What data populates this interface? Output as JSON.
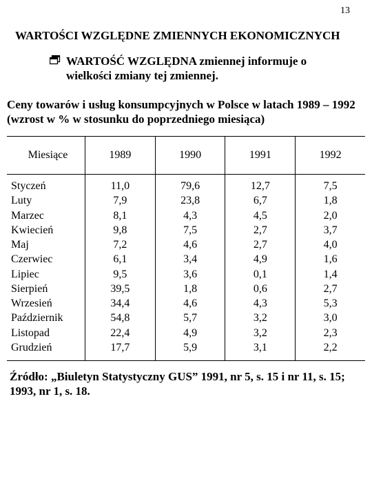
{
  "page": {
    "number": "13"
  },
  "heading1": "WARTOŚCI WZGLĘDNE ZMIENNYCH EKONOMICZNYCH",
  "definition": {
    "line1": "WARTOŚĆ WZGLĘDNA zmiennej informuje   o",
    "line2": "wielkości zmiany tej  zmiennej."
  },
  "table_title": {
    "top": "Ceny towarów i usług konsumpcyjnych w Polsce w latach 1989 – 1992",
    "sub": "(wzrost w % w stosunku do poprzedniego miesiąca)"
  },
  "table": {
    "columns": [
      "Miesiące",
      "1989",
      "1990",
      "1991",
      "1992"
    ],
    "col_widths_pct": [
      21,
      19.75,
      19.75,
      19.75,
      19.75
    ],
    "border_color": "#000000",
    "background_color": "#ffffff",
    "header_font_size": 16,
    "body_font_size": 16,
    "rows": [
      [
        "Styczeń",
        "11,0",
        "79,6",
        "12,7",
        "7,5"
      ],
      [
        "Luty",
        "7,9",
        "23,8",
        "6,7",
        "1,8"
      ],
      [
        "Marzec",
        "8,1",
        "4,3",
        "4,5",
        "2,0"
      ],
      [
        "Kwiecień",
        "9,8",
        "7,5",
        "2,7",
        "3,7"
      ],
      [
        "Maj",
        "7,2",
        "4,6",
        "2,7",
        "4,0"
      ],
      [
        "Czerwiec",
        "6,1",
        "3,4",
        "4,9",
        "1,6"
      ],
      [
        "Lipiec",
        "9,5",
        "3,6",
        "0,1",
        "1,4"
      ],
      [
        "Sierpień",
        "39,5",
        "1,8",
        "0,6",
        "2,7"
      ],
      [
        "Wrzesień",
        "34,4",
        "4,6",
        "4,3",
        "5,3"
      ],
      [
        "Październik",
        "54,8",
        "5,7",
        "3,2",
        "3,0"
      ],
      [
        "Listopad",
        "22,4",
        "4,9",
        "3,2",
        "2,3"
      ],
      [
        "Grudzień",
        "17,7",
        "5,9",
        "3,1",
        "2,2"
      ]
    ]
  },
  "source": "Źródło: „Biuletyn Statystyczny GUS” 1991, nr 5, s. 15 i nr 11, s. 15; 1993, nr 1, s. 18.",
  "bullet_icon_name": "overlap-window-icon",
  "colors": {
    "text": "#000000",
    "background": "#ffffff",
    "border": "#000000"
  },
  "fonts": {
    "family": "Times New Roman",
    "heading_size": 17,
    "body_size": 17
  }
}
